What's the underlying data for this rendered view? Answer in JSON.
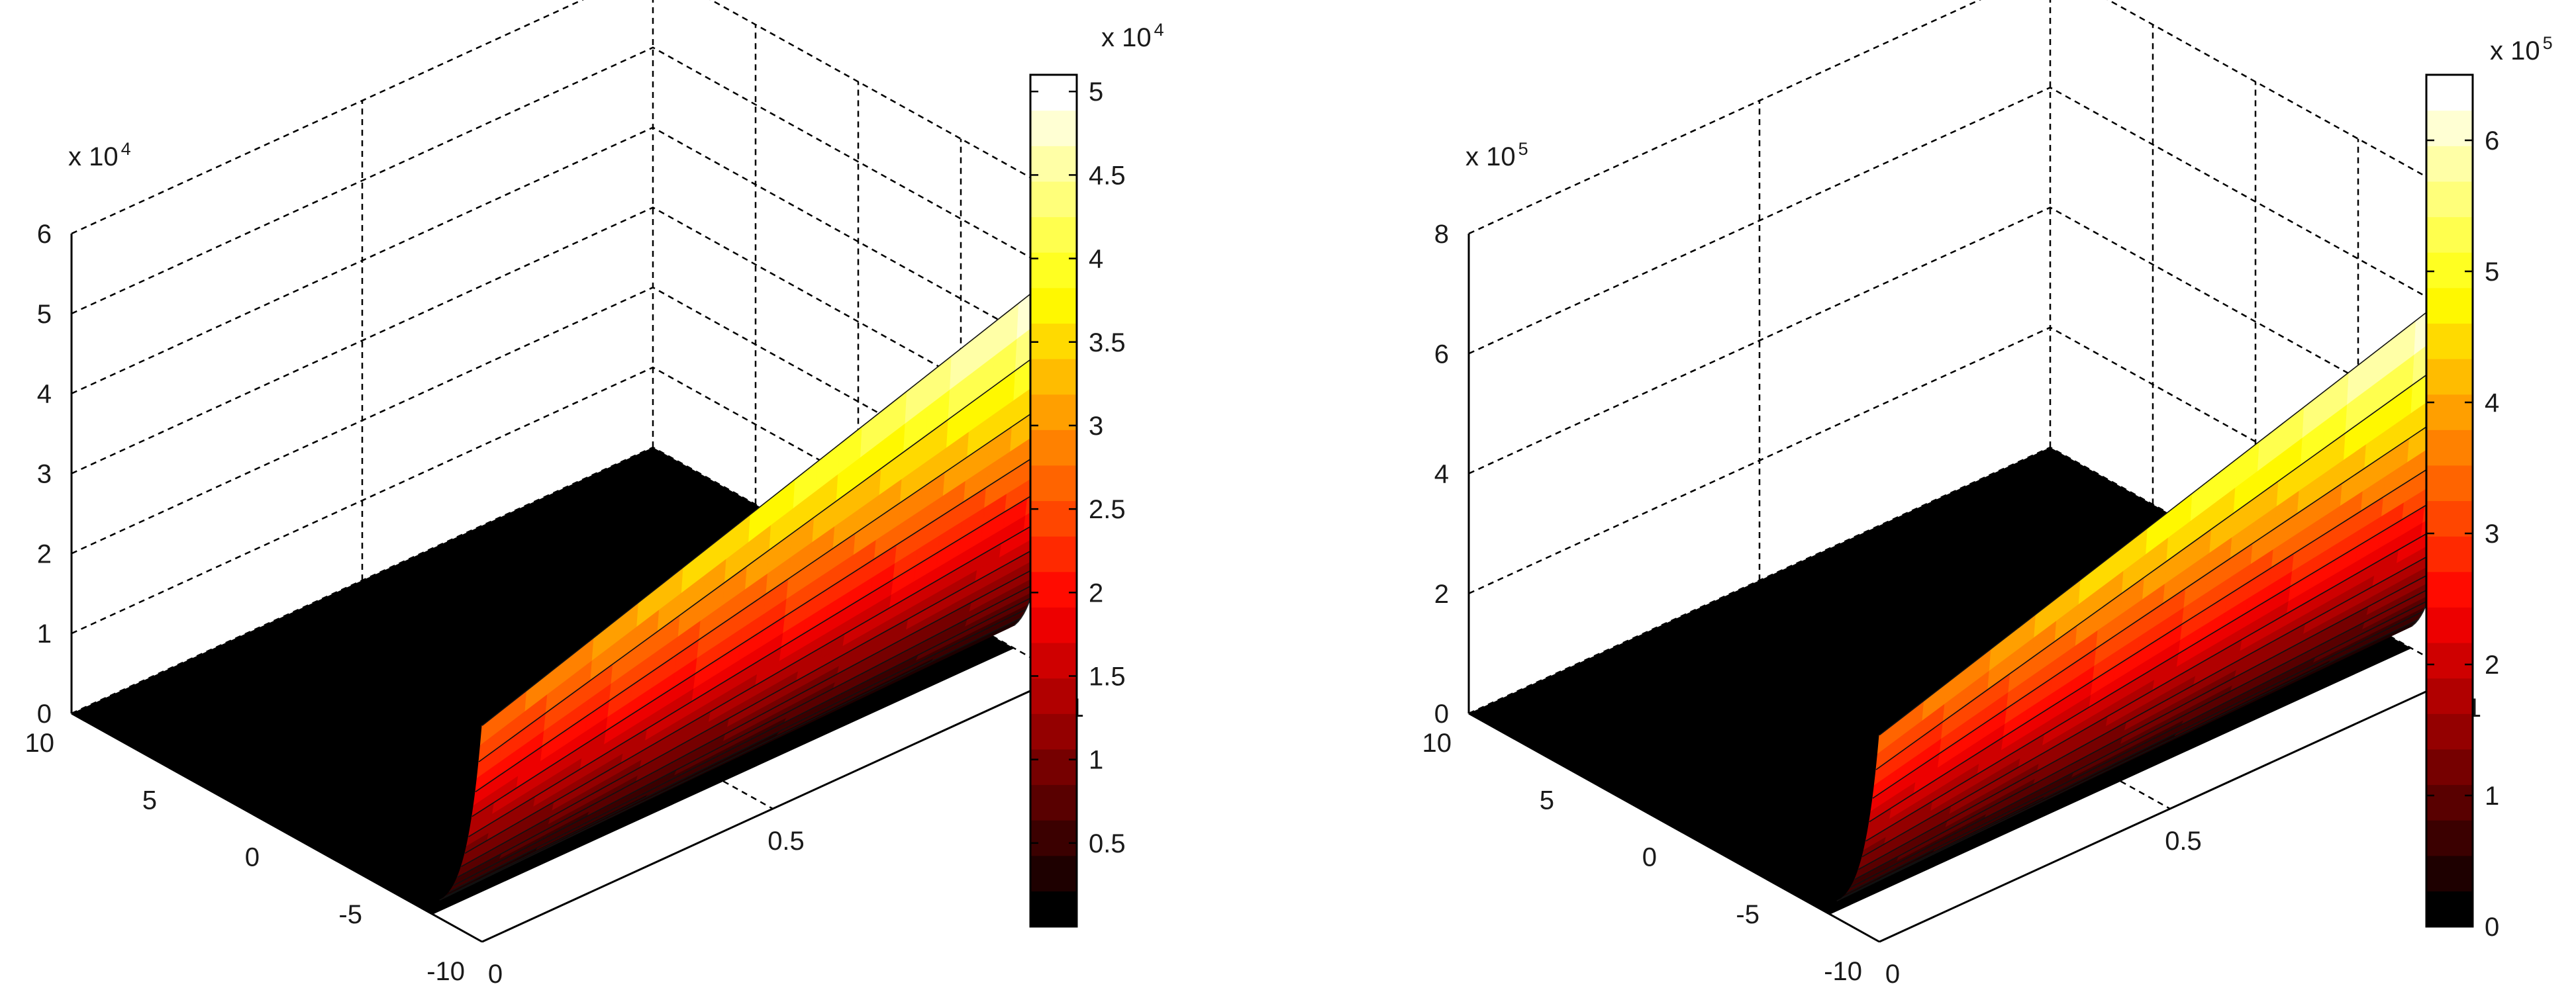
{
  "chart_data": [
    {
      "type": "surface",
      "panel": "left",
      "colormap": "hot",
      "x_ticks": [
        "0",
        "0.5",
        "1"
      ],
      "y_ticks": [
        "10",
        "5",
        "0",
        "-5",
        "-10"
      ],
      "z_ticks": [
        "0",
        "1",
        "2",
        "3",
        "4",
        "5",
        "6"
      ],
      "z_multiplier": {
        "base": "x 10",
        "exponent": "4"
      },
      "xlim": [
        0,
        1
      ],
      "ylim": [
        -10,
        10
      ],
      "zlim": [
        0,
        6
      ],
      "surface_max": 5.1,
      "surface_profile": "value ≈ 0 for y > -7, rising steeply at the y = -10 edge; the peak grows linearly with x from about 2.7 at x = 0 to about 5.1 at x = 1 (×10^4)",
      "grid": true,
      "colorbar": {
        "ticks": [
          "0.5",
          "1",
          "1.5",
          "2",
          "2.5",
          "3",
          "3.5",
          "4",
          "4.5",
          "5"
        ],
        "multiplier": {
          "base": "x 10",
          "exponent": "4"
        },
        "range": [
          0,
          5.1
        ],
        "levels": 24
      }
    },
    {
      "type": "surface",
      "panel": "right",
      "colormap": "hot",
      "x_ticks": [
        "0",
        "0.5",
        "1"
      ],
      "y_ticks": [
        "10",
        "5",
        "0",
        "-5",
        "-10"
      ],
      "z_ticks": [
        "0",
        "2",
        "4",
        "6",
        "8"
      ],
      "z_multiplier": {
        "base": "x 10",
        "exponent": "5"
      },
      "xlim": [
        0,
        1
      ],
      "ylim": [
        -10,
        10
      ],
      "zlim": [
        0,
        8
      ],
      "surface_max": 6.5,
      "surface_profile": "value ≈ 0 for y > -7, rising steeply at the y = -10 edge; the peak grows linearly with x from about 3.3 at x = 0 to about 6.5 at x = 1 (×10^5)",
      "grid": true,
      "colorbar": {
        "ticks": [
          "0",
          "1",
          "2",
          "3",
          "4",
          "5",
          "6"
        ],
        "multiplier": {
          "base": "x 10",
          "exponent": "5"
        },
        "range": [
          0,
          6.5
        ],
        "levels": 24
      }
    }
  ]
}
